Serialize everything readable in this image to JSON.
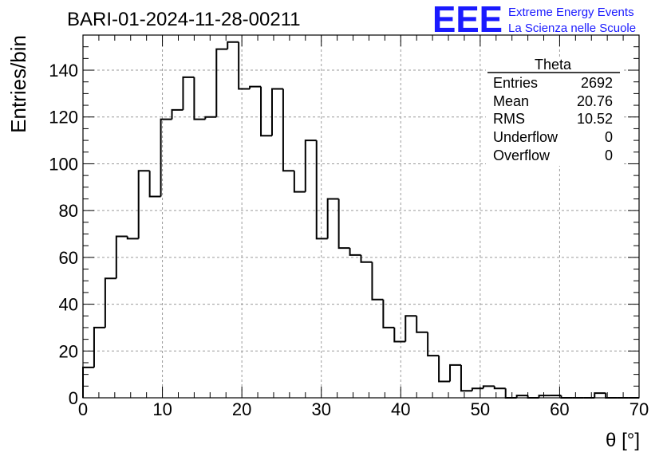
{
  "chart_data": {
    "type": "histogram",
    "title": "BARI-01-2024-11-28-00211",
    "xlabel": "θ [°]",
    "ylabel": "Entries/bin",
    "xlim": [
      0,
      70
    ],
    "ylim": [
      0,
      155
    ],
    "grid": true,
    "bin_width": 1.4,
    "x_ticks": [
      0,
      10,
      20,
      30,
      40,
      50,
      60,
      70
    ],
    "y_ticks": [
      0,
      20,
      40,
      60,
      80,
      100,
      120,
      140
    ],
    "bin_edges": [
      0,
      1.4,
      2.8,
      4.2,
      5.6,
      7.0,
      8.4,
      9.8,
      11.2,
      12.6,
      14.0,
      15.4,
      16.8,
      18.2,
      19.6,
      21.0,
      22.4,
      23.8,
      25.2,
      26.6,
      28.0,
      29.4,
      30.8,
      32.2,
      33.6,
      35.0,
      36.4,
      37.8,
      39.2,
      40.6,
      42.0,
      43.4,
      44.8,
      46.2,
      47.6,
      49.0,
      50.4,
      51.8,
      53.2,
      54.6,
      56.0,
      57.4,
      58.8,
      60.2,
      61.6,
      63.0,
      64.4,
      65.8,
      67.2,
      68.6,
      70.0
    ],
    "values": [
      13,
      30,
      51,
      69,
      68,
      97,
      86,
      119,
      123,
      137,
      119,
      120,
      149,
      152,
      132,
      133,
      112,
      132,
      97,
      88,
      110,
      68,
      85,
      64,
      61,
      58,
      42,
      30,
      24,
      35,
      28,
      18,
      7,
      14,
      3,
      4,
      5,
      4,
      0,
      1,
      0,
      1,
      1,
      0,
      0,
      0,
      2,
      0,
      0,
      0
    ],
    "stats": {
      "name": "Theta",
      "rows": [
        {
          "label": "Entries",
          "value": "2692"
        },
        {
          "label": "Mean",
          "value": "20.76"
        },
        {
          "label": "RMS",
          "value": "10.52"
        },
        {
          "label": "Underflow",
          "value": "0"
        },
        {
          "label": "Overflow",
          "value": "0"
        }
      ]
    }
  },
  "logo": {
    "mark": "EEE",
    "line1": "Extreme Energy Events",
    "line2": "La Scienza nelle Scuole"
  },
  "colors": {
    "line": "#000000",
    "grid": "#9a9a9a",
    "logo": "#1a1aff"
  }
}
